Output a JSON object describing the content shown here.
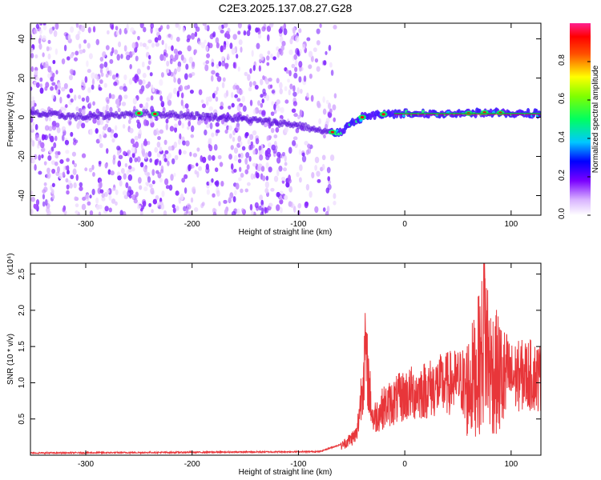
{
  "figure": {
    "title": "C2E3.2025.137.08.27.G28"
  },
  "chart_data": [
    {
      "type": "heatmap",
      "xlabel": "Height of straight line (km)",
      "ylabel": "Frequency (Hz)",
      "xlim": [
        -352,
        128
      ],
      "ylim": [
        -50,
        48
      ],
      "xticks": [
        -300,
        -200,
        -100,
        0,
        100
      ],
      "yticks": [
        -40,
        -20,
        0,
        20,
        40
      ],
      "colorbar": {
        "label": "Normalized spectral amplitude",
        "range": [
          0,
          1
        ],
        "ticks": [
          "0.0",
          "0.2",
          "0.4",
          "0.6",
          "0.8"
        ],
        "colormap": "rainbow (white-violet-blue-cyan-green-yellow-red-magenta)"
      },
      "features": {
        "noise_region_x": [
          -352,
          -75
        ],
        "signal_trace": [
          [
            -350,
            2
          ],
          [
            -300,
            0
          ],
          [
            -250,
            2
          ],
          [
            -200,
            1
          ],
          [
            -150,
            -1
          ],
          [
            -100,
            -4
          ],
          [
            -80,
            -7
          ],
          [
            -60,
            -8
          ],
          [
            -50,
            -3
          ],
          [
            -40,
            0
          ],
          [
            -30,
            1
          ],
          [
            -20,
            1.5
          ],
          [
            0,
            2
          ],
          [
            20,
            2
          ],
          [
            40,
            2
          ],
          [
            60,
            2
          ],
          [
            80,
            2.5
          ],
          [
            100,
            2
          ],
          [
            128,
            2
          ]
        ],
        "colors": {
          "noise_light": "#d9b3ff",
          "noise_dark": "#7a1fff",
          "line": "#e31a1c"
        }
      }
    },
    {
      "type": "line",
      "xlabel": "Height of straight line (km)",
      "ylabel": "SNR (10 * v/v)",
      "y_multiplier_label": "(x10⁴)",
      "xlim": [
        -352,
        128
      ],
      "ylim": [
        0,
        2.65
      ],
      "xticks": [
        -300,
        -200,
        -100,
        0,
        100
      ],
      "yticks": [
        0.5,
        1.0,
        1.5,
        2.0,
        2.5
      ],
      "series": [
        {
          "color": "#e8363a",
          "envelope": [
            [
              -350,
              0.03
            ],
            [
              -200,
              0.04
            ],
            [
              -80,
              0.05
            ],
            [
              -60,
              0.15
            ],
            [
              -45,
              0.35
            ],
            [
              -37,
              1.7
            ],
            [
              -30,
              0.6
            ],
            [
              -20,
              0.8
            ],
            [
              -10,
              0.9
            ],
            [
              0,
              1.0
            ],
            [
              20,
              1.1
            ],
            [
              40,
              1.2
            ],
            [
              55,
              1.25
            ],
            [
              65,
              1.6
            ],
            [
              72,
              2.0
            ],
            [
              75,
              2.65
            ],
            [
              80,
              1.8
            ],
            [
              90,
              1.6
            ],
            [
              100,
              1.3
            ],
            [
              115,
              1.35
            ],
            [
              128,
              1.3
            ]
          ],
          "spike_peaks": [
            {
              "x": -37,
              "y": 1.7
            },
            {
              "x": 75,
              "y": 2.65
            }
          ]
        }
      ]
    }
  ]
}
